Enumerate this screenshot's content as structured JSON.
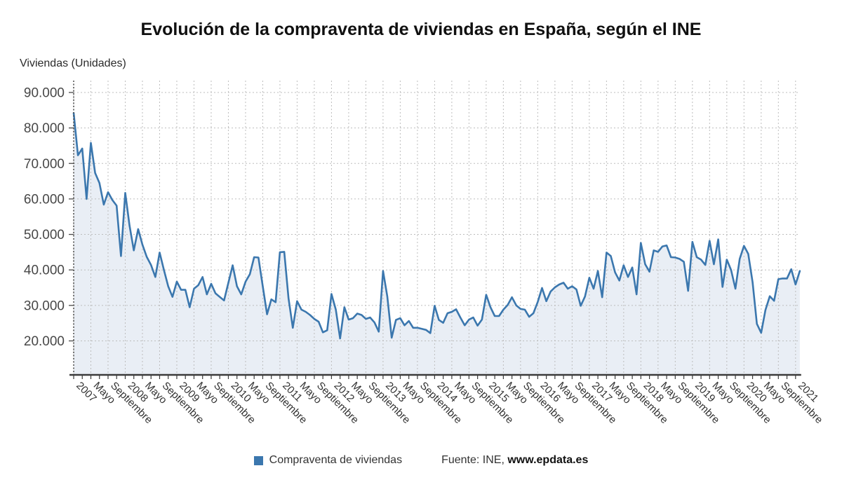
{
  "title": "Evolución de la compraventa de viviendas en España, según el INE",
  "y_axis_title": "Viviendas (Unidades)",
  "legend": {
    "series_label": "Compraventa de viviendas",
    "source_prefix": "Fuente: INE, ",
    "source_link": "www.epdata.es"
  },
  "colors": {
    "line": "#3b77ae",
    "fill": "#e9eef5",
    "grid": "#bdbdbd",
    "axis": "#3b3b3b",
    "y_axis_dotted": "#4a4a4a",
    "tick_text": "#474747",
    "x_label_text": "#323232"
  },
  "chart_data": {
    "type": "area",
    "title": "Evolución de la compraventa de viviendas en España, según el INE",
    "ylabel": "Viviendas (Unidades)",
    "xlabel": "",
    "frequency": "monthly",
    "x_start": "2007-01",
    "x_end": "2021-02",
    "ylim": [
      10500,
      93000
    ],
    "grid": true,
    "legend_position": "bottom",
    "y_ticks": [
      20000,
      30000,
      40000,
      50000,
      60000,
      70000,
      80000,
      90000
    ],
    "y_tick_labels": [
      "20.000",
      "30.000",
      "40.000",
      "50.000",
      "60.000",
      "70.000",
      "80.000",
      "90.000"
    ],
    "x_tick_step_months": 4,
    "x_tick_labels": [
      "2007",
      "Mayo",
      "Septiembre",
      "2008",
      "Mayo",
      "Septiembre",
      "2009",
      "Mayo",
      "Septiembre",
      "2010",
      "Mayo",
      "Septiembre",
      "2011",
      "Mayo",
      "Septiembre",
      "2012",
      "Mayo",
      "Septiembre",
      "2013",
      "Mayo",
      "Septiembre",
      "2014",
      "Mayo",
      "Septiembre",
      "2015",
      "Mayo",
      "Septiembre",
      "2016",
      "Mayo",
      "Septiembre",
      "2017",
      "Mayo",
      "Septiembre",
      "2018",
      "Mayo",
      "Septiembre",
      "2019",
      "Mayo",
      "Septiembre",
      "2020",
      "Mayo",
      "Septiembre",
      "2021"
    ],
    "series": [
      {
        "name": "Compraventa de viviendas",
        "values": [
          84200,
          72300,
          74200,
          60000,
          75800,
          67300,
          64500,
          58400,
          61900,
          59700,
          58100,
          43900,
          61700,
          52500,
          45500,
          51500,
          47100,
          43700,
          41400,
          38000,
          44900,
          40000,
          35400,
          32400,
          36700,
          34400,
          34400,
          29500,
          34700,
          35700,
          38000,
          33100,
          36100,
          33400,
          32400,
          31400,
          36400,
          41300,
          35400,
          33100,
          36700,
          38800,
          43600,
          43500,
          35500,
          27500,
          31700,
          30900,
          45000,
          45100,
          32000,
          23700,
          31200,
          28800,
          28200,
          27300,
          26200,
          25400,
          22400,
          23000,
          33200,
          28800,
          20700,
          29500,
          26000,
          26400,
          27700,
          27300,
          26200,
          26600,
          25200,
          22600,
          39700,
          32500,
          20900,
          25900,
          26400,
          24400,
          25600,
          23700,
          23700,
          23400,
          23100,
          22200,
          29900,
          25900,
          25100,
          27800,
          28200,
          28900,
          26600,
          24400,
          26000,
          26600,
          24300,
          26000,
          33000,
          29500,
          27000,
          27000,
          28800,
          30100,
          32300,
          30000,
          29000,
          28800,
          26800,
          27800,
          31000,
          34900,
          31200,
          33900,
          35100,
          35900,
          36400,
          34700,
          35400,
          34500,
          29900,
          32500,
          37800,
          34700,
          39700,
          32300,
          44900,
          43900,
          39300,
          37000,
          41300,
          38000,
          40700,
          33100,
          47600,
          41600,
          39500,
          45500,
          45100,
          46600,
          46900,
          43600,
          43500,
          43100,
          42300,
          34100,
          47900,
          43600,
          42900,
          41400,
          48200,
          41600,
          48600,
          35200,
          42900,
          40000,
          34700,
          43100,
          46800,
          44500,
          36500,
          24800,
          22300,
          28700,
          32600,
          31300,
          37400,
          37600,
          37600,
          40200,
          35900,
          39700
        ]
      }
    ]
  }
}
